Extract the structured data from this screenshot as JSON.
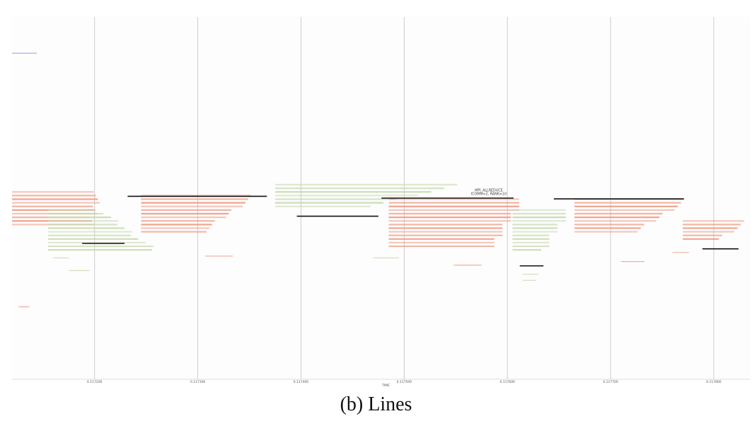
{
  "caption": {
    "label": "(b)",
    "text": "Lines"
  },
  "chart_data": {
    "type": "timeline",
    "xlabel": "TIME",
    "xlim": [
      0.11712,
      0.117835
    ],
    "x_ticks": [
      0.1172,
      0.1173,
      0.1174,
      0.1175,
      0.1176,
      0.1177,
      0.1178
    ],
    "x_tick_labels": [
      "0.117200",
      "0.117300",
      "0.117400",
      "0.117500",
      "0.117600",
      "0.117700",
      "0.117800"
    ],
    "vertical_gridlines": true,
    "y_rows": 100,
    "annotation": {
      "text_line1": "MPI_ALLREDUCE",
      "text_line2": "ICOMM=2, RANK=10",
      "x": 0.117582,
      "row": 49
    },
    "colors": {
      "red": "#ef9c86",
      "green": "#c8dab0",
      "black": "#111111",
      "blue": "#8c8cf0",
      "grid": "#cccccc"
    },
    "regions": [
      {
        "color": "red",
        "row_start": 48,
        "row_end": 58,
        "x_start": 0.11712,
        "x_end_first": 0.117203,
        "x_end_last": 0.117198
      },
      {
        "color": "green",
        "row_start": 53,
        "row_end": 65,
        "x_start": 0.117155,
        "x_end_first": 0.117205,
        "x_end_last": 0.117258
      },
      {
        "color": "red",
        "row_start": 49,
        "row_end": 60,
        "x_start": 0.117245,
        "x_end_first": 0.117355,
        "x_end_last": 0.117305
      },
      {
        "color": "green",
        "row_start": 46,
        "row_end": 53,
        "x_start": 0.117375,
        "x_end_first": 0.117555,
        "x_end_last": 0.117465
      },
      {
        "color": "red",
        "row_start": 50,
        "row_end": 64,
        "x_start": 0.117485,
        "x_end_first": 0.117615,
        "x_end_last": 0.117585
      },
      {
        "color": "green",
        "row_start": 53,
        "row_end": 65,
        "x_start": 0.117605,
        "x_end_first": 0.11766,
        "x_end_last": 0.117635
      },
      {
        "color": "red",
        "row_start": 50,
        "row_end": 60,
        "x_start": 0.117665,
        "x_end_first": 0.117775,
        "x_end_last": 0.117725
      },
      {
        "color": "red",
        "row_start": 56,
        "row_end": 62,
        "x_start": 0.11777,
        "x_end_first": 0.117833,
        "x_end_last": 0.117805
      }
    ],
    "segments": [
      {
        "color": "black",
        "x_start": 0.117188,
        "x_end": 0.117229,
        "row": 62.5
      },
      {
        "color": "black",
        "x_start": 0.117232,
        "x_end": 0.117367,
        "row": 49.5
      },
      {
        "color": "black",
        "x_start": 0.117396,
        "x_end": 0.117475,
        "row": 55.0
      },
      {
        "color": "black",
        "x_start": 0.117478,
        "x_end": 0.117606,
        "row": 50.0
      },
      {
        "color": "black",
        "x_start": 0.117612,
        "x_end": 0.117635,
        "row": 68.7
      },
      {
        "color": "black",
        "x_start": 0.117645,
        "x_end": 0.117771,
        "row": 50.2
      },
      {
        "color": "black",
        "x_start": 0.117789,
        "x_end": 0.117824,
        "row": 64.0
      },
      {
        "color": "blue",
        "x_start": 0.11712,
        "x_end": 0.117144,
        "row": 10.0
      },
      {
        "color": "red",
        "x_start": 0.117126,
        "x_end": 0.117137,
        "row": 80.0
      },
      {
        "color": "red",
        "x_start": 0.117307,
        "x_end": 0.117334,
        "row": 66.0
      },
      {
        "color": "green",
        "x_start": 0.11716,
        "x_end": 0.117175,
        "row": 66.5
      },
      {
        "color": "green",
        "x_start": 0.117175,
        "x_end": 0.117195,
        "row": 70.0
      },
      {
        "color": "green",
        "x_start": 0.11747,
        "x_end": 0.117495,
        "row": 66.5
      },
      {
        "color": "red",
        "x_start": 0.117548,
        "x_end": 0.117575,
        "row": 68.5
      },
      {
        "color": "red",
        "x_start": 0.11771,
        "x_end": 0.117733,
        "row": 67.5
      },
      {
        "color": "green",
        "x_start": 0.117615,
        "x_end": 0.11763,
        "row": 71.0
      },
      {
        "color": "green",
        "x_start": 0.117615,
        "x_end": 0.117628,
        "row": 72.7
      },
      {
        "color": "red",
        "x_start": 0.11776,
        "x_end": 0.117776,
        "row": 65.0
      }
    ]
  }
}
